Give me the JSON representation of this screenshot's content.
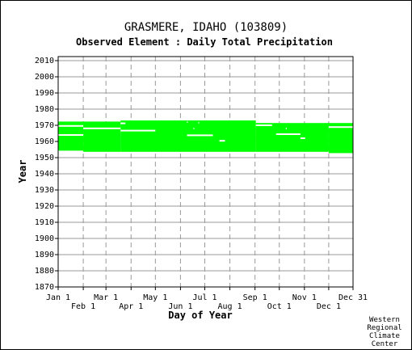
{
  "chart_data": {
    "type": "heatmap",
    "title": "GRASMERE, IDAHO   (103809)",
    "subtitle": "Observed Element : Daily Total Precipitation",
    "xlabel": "Day of Year",
    "ylabel": "Year",
    "xlim": [
      1,
      365
    ],
    "ylim": [
      1870,
      2012
    ],
    "x_ticks_top": [
      {
        "label": "Jan 1",
        "day": 1
      },
      {
        "label": "Mar 1",
        "day": 60
      },
      {
        "label": "May 1",
        "day": 121
      },
      {
        "label": "Jul 1",
        "day": 182
      },
      {
        "label": "Sep 1",
        "day": 244
      },
      {
        "label": "Nov 1",
        "day": 305
      },
      {
        "label": "Dec 31",
        "day": 365
      }
    ],
    "x_ticks_bottom": [
      {
        "label": "Feb 1",
        "day": 32
      },
      {
        "label": "Apr 1",
        "day": 91
      },
      {
        "label": "Jun 1",
        "day": 152
      },
      {
        "label": "Aug 1",
        "day": 213
      },
      {
        "label": "Oct 1",
        "day": 274
      },
      {
        "label": "Dec 1",
        "day": 335
      }
    ],
    "y_ticks": [
      2010,
      2000,
      1990,
      1980,
      1970,
      1960,
      1950,
      1940,
      1930,
      1920,
      1910,
      1900,
      1890,
      1880,
      1870
    ],
    "grid": true,
    "data_color": "#00ff00",
    "observed_periods": [
      {
        "day_start": 1,
        "day_end": 32,
        "year_start": 1954.3,
        "year_end": 1972.3
      },
      {
        "day_start": 32,
        "day_end": 78,
        "year_start": 1953.6,
        "year_end": 1972.3
      },
      {
        "day_start": 78,
        "day_end": 245,
        "year_start": 1953.6,
        "year_end": 1973.0
      },
      {
        "day_start": 245,
        "day_end": 335,
        "year_start": 1953.6,
        "year_end": 1971.4
      },
      {
        "day_start": 335,
        "day_end": 365,
        "year_start": 1952.8,
        "year_end": 1971.4
      }
    ],
    "missing_segments": [
      {
        "day_start": 1,
        "day_end": 32,
        "year": 1969.6
      },
      {
        "day_start": 1,
        "day_end": 32,
        "year": 1964.0
      },
      {
        "day_start": 32,
        "day_end": 78,
        "year": 1968.1
      },
      {
        "day_start": 78,
        "day_end": 121,
        "year": 1966.7
      },
      {
        "day_start": 160,
        "day_end": 192,
        "year": 1963.8
      },
      {
        "day_start": 200,
        "day_end": 207,
        "year": 1960.4
      },
      {
        "day_start": 78,
        "day_end": 84,
        "year": 1971.2
      },
      {
        "day_start": 160,
        "day_end": 161,
        "year": 1972.0
      },
      {
        "day_start": 168,
        "day_end": 169,
        "year": 1968.0
      },
      {
        "day_start": 174,
        "day_end": 175,
        "year": 1971.6
      },
      {
        "day_start": 245,
        "day_end": 265,
        "year": 1970.0
      },
      {
        "day_start": 270,
        "day_end": 300,
        "year": 1964.5
      },
      {
        "day_start": 282,
        "day_end": 283,
        "year": 1968.0
      },
      {
        "day_start": 300,
        "day_end": 306,
        "year": 1962.0
      },
      {
        "day_start": 335,
        "day_end": 365,
        "year": 1968.9
      }
    ]
  },
  "credit": [
    "Western",
    "Regional",
    "Climate",
    "Center"
  ],
  "colors": {
    "background": "#ffffff",
    "grid_solid": "#999999",
    "grid_dashed": "#999999",
    "data": "#00ff00"
  }
}
